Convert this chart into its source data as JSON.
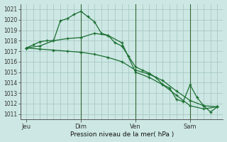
{
  "background_color": "#cde8e4",
  "grid_color": "#a8c8c4",
  "line_color": "#1a6e30",
  "vline_color": "#336633",
  "xlabel": "Pression niveau de la mer( hPa )",
  "ylim": [
    1010.5,
    1021.5
  ],
  "yticks": [
    1011,
    1012,
    1013,
    1014,
    1015,
    1016,
    1017,
    1018,
    1019,
    1020,
    1021
  ],
  "day_labels": [
    "Jeu",
    "Dim",
    "Ven",
    "Sam"
  ],
  "day_positions": [
    0,
    48,
    96,
    144
  ],
  "xlim": [
    -5,
    173
  ],
  "lines": [
    {
      "x": [
        0,
        6,
        12,
        18,
        24,
        30,
        36,
        42,
        48,
        54,
        60,
        66,
        72,
        78,
        84,
        90,
        96,
        102,
        108,
        114,
        120,
        126,
        132,
        138,
        144,
        150,
        156,
        162,
        168
      ],
      "y": [
        1017.3,
        1017.6,
        1017.9,
        1018.0,
        1018.0,
        1019.9,
        1020.1,
        1020.5,
        1020.8,
        1020.3,
        1019.8,
        1018.7,
        1018.5,
        1017.8,
        1017.5,
        1016.5,
        1015.5,
        1015.2,
        1014.9,
        1014.5,
        1013.8,
        1013.5,
        1012.4,
        1012.2,
        1013.8,
        1012.6,
        1011.8,
        1011.2,
        1011.7
      ]
    },
    {
      "x": [
        0,
        12,
        24,
        36,
        48,
        60,
        72,
        84,
        96,
        108,
        120,
        132,
        144,
        156,
        168
      ],
      "y": [
        1017.3,
        1017.5,
        1018.0,
        1018.2,
        1018.3,
        1018.7,
        1018.5,
        1017.8,
        1015.0,
        1014.5,
        1013.8,
        1012.8,
        1011.8,
        1011.5,
        1011.7
      ]
    },
    {
      "x": [
        0,
        12,
        24,
        36,
        48,
        60,
        72,
        84,
        96,
        108,
        120,
        132,
        144,
        156,
        168
      ],
      "y": [
        1017.3,
        1017.2,
        1017.1,
        1017.0,
        1016.9,
        1016.7,
        1016.4,
        1016.0,
        1015.2,
        1014.8,
        1014.2,
        1013.2,
        1012.3,
        1011.8,
        1011.7
      ]
    }
  ],
  "vlines": [
    48,
    96,
    144
  ]
}
